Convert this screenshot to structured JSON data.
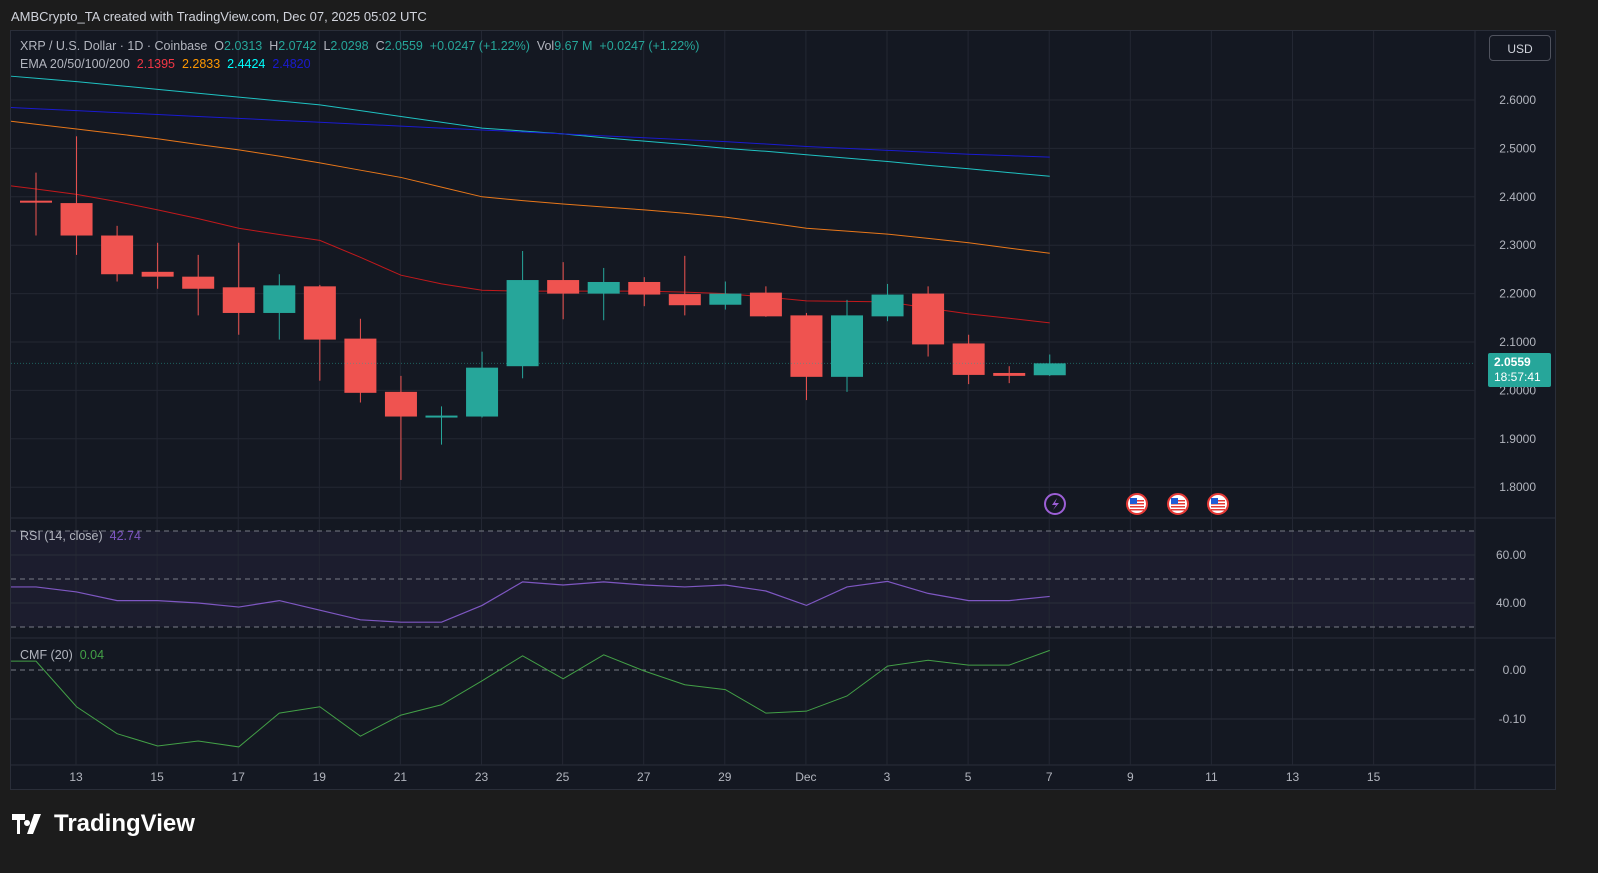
{
  "credit": "AMBCrypto_TA created with TradingView.com, Dec 07, 2025 05:02 UTC",
  "symbol_line": {
    "symbol": "XRP / U.S. Dollar · 1D · Coinbase",
    "o_label": "O",
    "o": "2.0313",
    "h_label": "H",
    "h": "2.0742",
    "l_label": "L",
    "l": "2.0298",
    "c_label": "C",
    "c": "2.0559",
    "change": "+0.0247 (+1.22%)",
    "vol_label": "Vol",
    "vol": "9.67 M",
    "vol_change": "+0.0247 (+1.22%)"
  },
  "ema_legend": {
    "label": "EMA 20/50/100/200",
    "v20": "2.1395",
    "v50": "2.2833",
    "v100": "2.4424",
    "v200": "2.4820"
  },
  "currency": "USD",
  "last_price": {
    "price": "2.0559",
    "countdown": "18:57:41"
  },
  "rsi_legend": {
    "label": "RSI (14, close)",
    "value": "42.74"
  },
  "cmf_legend": {
    "label": "CMF (20)",
    "value": "0.04"
  },
  "brand": "TradingView",
  "colors": {
    "up": "#26a69a",
    "down": "#ef5350",
    "ema20": "#c2191c",
    "ema50": "#e8771a",
    "ema100": "#1fc2c2",
    "ema200": "#1a1ad0",
    "rsi": "#7e57c2",
    "cmf": "#43a047"
  },
  "events": [
    "lightning-icon",
    "us-flag-icon",
    "us-flag-icon",
    "us-flag-icon"
  ],
  "chart_data": [
    {
      "type": "candlestick",
      "ylim": [
        1.75,
        2.7
      ],
      "price_ticks": [
        "2.6000",
        "2.5000",
        "2.4000",
        "2.3000",
        "2.2000",
        "2.1000",
        "2.0000",
        "1.9000",
        "1.8000"
      ],
      "x_ticks": [
        "13",
        "15",
        "17",
        "19",
        "21",
        "23",
        "25",
        "27",
        "29",
        "Dec",
        "3",
        "5",
        "7",
        "9",
        "11",
        "13",
        "15"
      ],
      "dates": [
        "Nov 12",
        "Nov 13",
        "Nov 14",
        "Nov 15",
        "Nov 16",
        "Nov 17",
        "Nov 18",
        "Nov 19",
        "Nov 20",
        "Nov 21",
        "Nov 22",
        "Nov 23",
        "Nov 24",
        "Nov 25",
        "Nov 26",
        "Nov 27",
        "Nov 28",
        "Nov 29",
        "Nov 30",
        "Dec 1",
        "Dec 2",
        "Dec 3",
        "Dec 4",
        "Dec 5",
        "Dec 6",
        "Dec 7"
      ],
      "ohlc": [
        [
          2.392,
          2.45,
          2.32,
          2.388
        ],
        [
          2.387,
          2.525,
          2.28,
          2.32
        ],
        [
          2.32,
          2.34,
          2.225,
          2.24
        ],
        [
          2.245,
          2.305,
          2.21,
          2.235
        ],
        [
          2.235,
          2.28,
          2.155,
          2.21
        ],
        [
          2.213,
          2.305,
          2.115,
          2.16
        ],
        [
          2.16,
          2.24,
          2.105,
          2.217
        ],
        [
          2.215,
          2.218,
          2.02,
          2.105
        ],
        [
          2.107,
          2.148,
          1.975,
          1.995
        ],
        [
          1.997,
          2.03,
          1.815,
          1.946
        ],
        [
          1.946,
          1.967,
          1.888,
          1.948
        ],
        [
          1.946,
          2.08,
          1.944,
          2.047
        ],
        [
          2.05,
          2.288,
          2.025,
          2.228
        ],
        [
          2.228,
          2.265,
          2.147,
          2.2
        ],
        [
          2.2,
          2.253,
          2.145,
          2.224
        ],
        [
          2.224,
          2.234,
          2.174,
          2.198
        ],
        [
          2.199,
          2.278,
          2.155,
          2.176
        ],
        [
          2.177,
          2.225,
          2.167,
          2.2
        ],
        [
          2.202,
          2.215,
          2.152,
          2.153
        ],
        [
          2.155,
          2.16,
          1.98,
          2.028
        ],
        [
          2.028,
          2.187,
          1.997,
          2.155
        ],
        [
          2.153,
          2.22,
          2.143,
          2.198
        ],
        [
          2.2,
          2.215,
          2.07,
          2.095
        ],
        [
          2.097,
          2.115,
          2.013,
          2.032
        ],
        [
          2.036,
          2.05,
          2.015,
          2.03
        ],
        [
          2.0313,
          2.0742,
          2.0298,
          2.0559
        ]
      ],
      "ema": {
        "20": [
          2.416,
          2.405,
          2.39,
          2.373,
          2.355,
          2.335,
          2.322,
          2.31,
          2.275,
          2.238,
          2.22,
          2.207,
          2.205,
          2.205,
          2.205,
          2.205,
          2.203,
          2.2,
          2.193,
          2.185,
          2.184,
          2.183,
          2.17,
          2.158,
          2.149,
          2.1395
        ],
        "50": [
          2.55,
          2.54,
          2.53,
          2.52,
          2.508,
          2.497,
          2.484,
          2.47,
          2.455,
          2.44,
          2.42,
          2.4,
          2.392,
          2.385,
          2.379,
          2.373,
          2.366,
          2.358,
          2.347,
          2.335,
          2.329,
          2.323,
          2.314,
          2.305,
          2.294,
          2.2833
        ],
        "100": [
          2.645,
          2.638,
          2.63,
          2.622,
          2.614,
          2.606,
          2.598,
          2.59,
          2.578,
          2.566,
          2.554,
          2.542,
          2.536,
          2.53,
          2.522,
          2.515,
          2.508,
          2.5,
          2.494,
          2.487,
          2.48,
          2.473,
          2.465,
          2.458,
          2.45,
          2.4424
        ],
        "200": [
          2.582,
          2.578,
          2.574,
          2.57,
          2.566,
          2.562,
          2.558,
          2.554,
          2.55,
          2.546,
          2.542,
          2.538,
          2.534,
          2.53,
          2.526,
          2.522,
          2.518,
          2.514,
          2.509,
          2.504,
          2.5,
          2.496,
          2.492,
          2.488,
          2.485,
          2.482
        ]
      }
    },
    {
      "type": "line",
      "name": "RSI (14, close)",
      "y_ticks": [
        "60.00",
        "40.00"
      ],
      "bands": [
        70,
        50,
        30
      ],
      "values": [
        46.7,
        44.6,
        41,
        41,
        40,
        38.3,
        41,
        37,
        33,
        32,
        32,
        39,
        48.8,
        47.5,
        48.8,
        47.5,
        46.7,
        47.5,
        45,
        39,
        46.7,
        49,
        44,
        41,
        41,
        42.74
      ]
    },
    {
      "type": "line",
      "name": "CMF (20)",
      "y_ticks": [
        "0.00",
        "-0.10"
      ],
      "values": [
        0.018,
        -0.075,
        -0.13,
        -0.155,
        -0.145,
        -0.157,
        -0.088,
        -0.075,
        -0.135,
        -0.092,
        -0.071,
        -0.022,
        0.029,
        -0.018,
        0.031,
        -0.002,
        -0.03,
        -0.04,
        -0.088,
        -0.084,
        -0.053,
        0.008,
        0.02,
        0.01,
        0.01,
        0.04
      ]
    }
  ]
}
